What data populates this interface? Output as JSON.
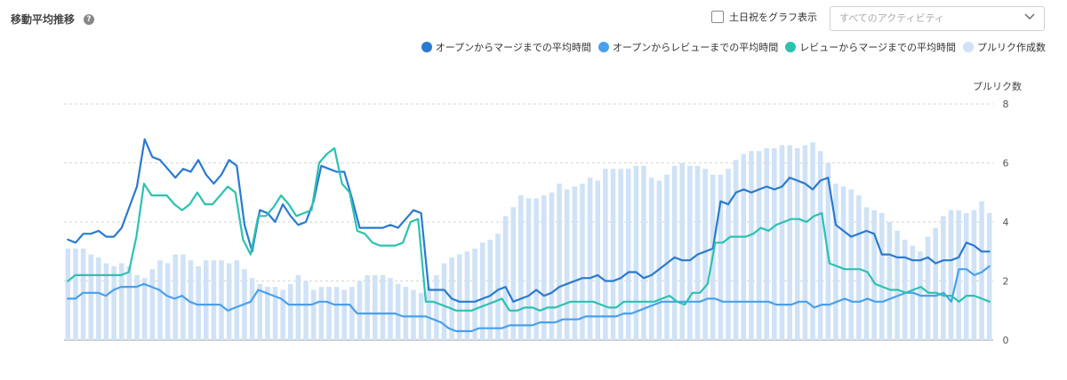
{
  "header": {
    "title": "移動平均推移",
    "help_icon": "question-circle-icon",
    "holiday_label": "土日祝をグラフ表示",
    "activity_select": {
      "value": "すべてのアクティビティ",
      "icon": "chevron-down-icon"
    }
  },
  "chart_data": {
    "type": "bar+line",
    "ylabel_right": "プルリク数",
    "y_ticks": [
      "0",
      "2",
      "4",
      "6",
      "8"
    ],
    "ylim": [
      0,
      8
    ],
    "grid": true,
    "legend_position": "top-right",
    "series": [
      {
        "name": "オープンからマージまでの平均時間",
        "kind": "line",
        "color": "#2a7ad0",
        "values": [
          3.4,
          3.3,
          3.6,
          3.6,
          3.7,
          3.5,
          3.5,
          3.8,
          4.5,
          5.2,
          6.8,
          6.2,
          6.1,
          5.8,
          5.5,
          5.8,
          5.7,
          6.1,
          5.6,
          5.3,
          5.6,
          6.1,
          5.9,
          3.9,
          3.0,
          4.4,
          4.3,
          4.0,
          4.6,
          4.2,
          3.9,
          4.0,
          4.7,
          5.9,
          5.8,
          5.7,
          5.7,
          4.8,
          3.8,
          3.8,
          3.8,
          3.8,
          3.9,
          3.8,
          4.1,
          4.4,
          4.3,
          1.7,
          1.7,
          1.7,
          1.4,
          1.3,
          1.3,
          1.3,
          1.4,
          1.5,
          1.7,
          1.8,
          1.3,
          1.4,
          1.5,
          1.7,
          1.5,
          1.6,
          1.8,
          1.9,
          2.0,
          2.1,
          2.1,
          2.2,
          2.0,
          2.0,
          2.1,
          2.3,
          2.3,
          2.1,
          2.2,
          2.4,
          2.6,
          2.8,
          2.7,
          2.7,
          2.9,
          3.0,
          3.1,
          4.7,
          4.6,
          5.0,
          5.1,
          5.0,
          5.1,
          5.2,
          5.1,
          5.2,
          5.5,
          5.4,
          5.3,
          5.1,
          5.4,
          5.5,
          3.9,
          3.7,
          3.5,
          3.6,
          3.7,
          3.6,
          2.9,
          2.9,
          2.8,
          2.8,
          2.7,
          2.7,
          2.8,
          2.6,
          2.7,
          2.7,
          2.8,
          3.3,
          3.2,
          3.0,
          3.0
        ]
      },
      {
        "name": "オープンからレビューまでの平均時間",
        "kind": "line",
        "color": "#4aa0ec",
        "values": [
          1.4,
          1.4,
          1.6,
          1.6,
          1.6,
          1.5,
          1.7,
          1.8,
          1.8,
          1.8,
          1.9,
          1.8,
          1.7,
          1.5,
          1.4,
          1.5,
          1.3,
          1.2,
          1.2,
          1.2,
          1.2,
          1.0,
          1.1,
          1.2,
          1.3,
          1.7,
          1.6,
          1.5,
          1.4,
          1.2,
          1.2,
          1.2,
          1.2,
          1.3,
          1.3,
          1.2,
          1.2,
          1.2,
          0.9,
          0.9,
          0.9,
          0.9,
          0.9,
          0.9,
          0.8,
          0.8,
          0.8,
          0.8,
          0.7,
          0.6,
          0.4,
          0.3,
          0.3,
          0.3,
          0.4,
          0.4,
          0.4,
          0.4,
          0.5,
          0.5,
          0.5,
          0.5,
          0.6,
          0.6,
          0.6,
          0.7,
          0.7,
          0.7,
          0.8,
          0.8,
          0.8,
          0.8,
          0.8,
          0.9,
          0.9,
          1.0,
          1.1,
          1.2,
          1.3,
          1.3,
          1.3,
          1.3,
          1.3,
          1.3,
          1.4,
          1.4,
          1.3,
          1.3,
          1.3,
          1.3,
          1.3,
          1.3,
          1.3,
          1.2,
          1.2,
          1.2,
          1.3,
          1.3,
          1.1,
          1.2,
          1.2,
          1.3,
          1.4,
          1.3,
          1.3,
          1.4,
          1.3,
          1.3,
          1.4,
          1.5,
          1.6,
          1.6,
          1.5,
          1.5,
          1.5,
          1.6,
          1.3,
          2.4,
          2.4,
          2.2,
          2.3,
          2.5
        ]
      },
      {
        "name": "レビューからマージまでの平均時間",
        "kind": "line",
        "color": "#2cc2b0",
        "values": [
          2.0,
          2.2,
          2.2,
          2.2,
          2.2,
          2.2,
          2.2,
          2.2,
          2.3,
          3.5,
          5.3,
          4.9,
          4.9,
          4.9,
          4.6,
          4.4,
          4.6,
          5.0,
          4.6,
          4.6,
          4.9,
          5.2,
          5.0,
          3.4,
          2.9,
          4.2,
          4.2,
          4.5,
          4.9,
          4.6,
          4.2,
          4.3,
          4.4,
          6.0,
          6.3,
          6.5,
          5.3,
          5.0,
          3.7,
          3.6,
          3.3,
          3.2,
          3.2,
          3.2,
          3.3,
          4.0,
          4.1,
          1.3,
          1.3,
          1.2,
          1.1,
          1.0,
          1.0,
          1.0,
          1.1,
          1.2,
          1.3,
          1.4,
          1.0,
          1.0,
          1.1,
          1.1,
          1.0,
          1.1,
          1.1,
          1.2,
          1.3,
          1.3,
          1.3,
          1.3,
          1.2,
          1.1,
          1.1,
          1.3,
          1.3,
          1.3,
          1.3,
          1.3,
          1.4,
          1.5,
          1.3,
          1.2,
          1.6,
          1.6,
          1.9,
          3.3,
          3.3,
          3.5,
          3.5,
          3.5,
          3.6,
          3.8,
          3.7,
          3.9,
          4.0,
          4.1,
          4.1,
          4.0,
          4.2,
          4.3,
          2.6,
          2.5,
          2.4,
          2.4,
          2.4,
          2.3,
          1.9,
          1.8,
          1.7,
          1.7,
          1.6,
          1.7,
          1.8,
          1.6,
          1.6,
          1.5,
          1.5,
          1.3,
          1.5,
          1.5,
          1.4,
          1.3
        ]
      },
      {
        "name": "プルリク作成数",
        "kind": "bar",
        "color": "#cfe2f6",
        "values": [
          3.1,
          3.1,
          3.1,
          2.9,
          2.8,
          2.6,
          2.5,
          2.6,
          2.5,
          2.2,
          2.1,
          2.4,
          2.7,
          2.6,
          2.9,
          2.9,
          2.7,
          2.5,
          2.7,
          2.7,
          2.7,
          2.6,
          2.7,
          2.4,
          2.1,
          1.9,
          1.8,
          1.8,
          1.7,
          1.9,
          2.2,
          2.0,
          1.7,
          1.8,
          1.8,
          1.8,
          1.7,
          1.8,
          2.0,
          2.2,
          2.2,
          2.2,
          2.1,
          1.9,
          1.8,
          1.7,
          1.6,
          1.8,
          2.2,
          2.6,
          2.8,
          2.9,
          3.0,
          3.1,
          3.3,
          3.4,
          3.6,
          4.2,
          4.5,
          4.9,
          4.8,
          4.8,
          4.9,
          5.0,
          5.3,
          5.1,
          5.2,
          5.3,
          5.5,
          5.4,
          5.8,
          5.8,
          5.8,
          5.8,
          5.9,
          5.9,
          5.5,
          5.4,
          5.6,
          5.9,
          6.0,
          5.9,
          5.9,
          5.8,
          5.6,
          5.6,
          5.8,
          6.1,
          6.3,
          6.4,
          6.4,
          6.5,
          6.5,
          6.6,
          6.6,
          6.5,
          6.6,
          6.7,
          6.4,
          6.0,
          5.3,
          5.2,
          5.1,
          4.9,
          4.5,
          4.4,
          4.3,
          4.0,
          3.7,
          3.4,
          3.2,
          3.0,
          3.5,
          3.8,
          4.2,
          4.4,
          4.4,
          4.3,
          4.4,
          4.7,
          4.3
        ]
      }
    ]
  }
}
